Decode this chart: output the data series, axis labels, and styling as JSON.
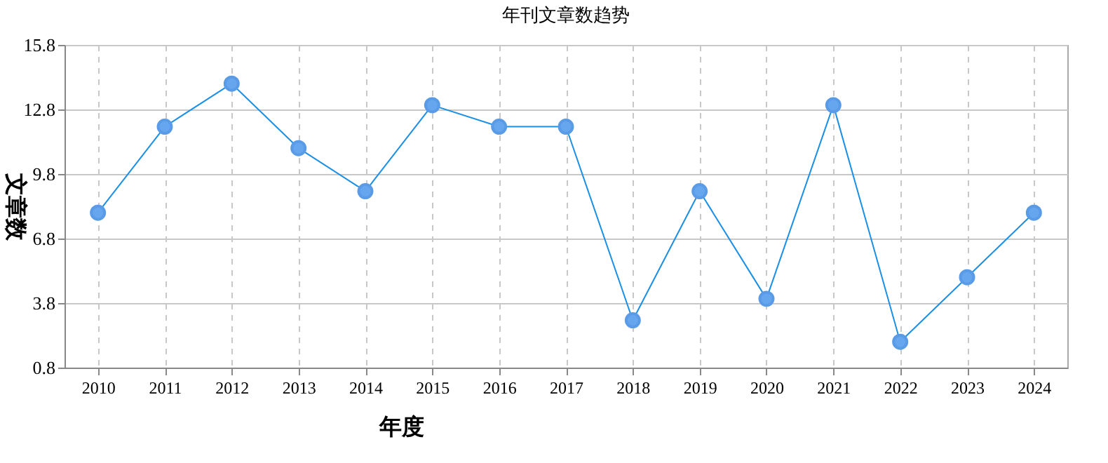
{
  "chart_data": {
    "type": "line",
    "title": "年刊文章数趋势",
    "xlabel": "年度",
    "ylabel": "文章数",
    "categories": [
      "2010",
      "2011",
      "2012",
      "2013",
      "2014",
      "2015",
      "2016",
      "2017",
      "2018",
      "2019",
      "2020",
      "2021",
      "2022",
      "2023",
      "2024"
    ],
    "series": [
      {
        "color": "#1a8fe6",
        "values": [
          8,
          12,
          14,
          11,
          9,
          13,
          12,
          12,
          3,
          9,
          4,
          13,
          2,
          5,
          8
        ]
      }
    ],
    "ylim": [
      0.8,
      15.8
    ],
    "yticks": [
      0.8,
      3.8,
      6.8,
      9.8,
      12.8,
      15.8
    ],
    "grid": true,
    "marker": "circle",
    "line_style": "solid"
  }
}
